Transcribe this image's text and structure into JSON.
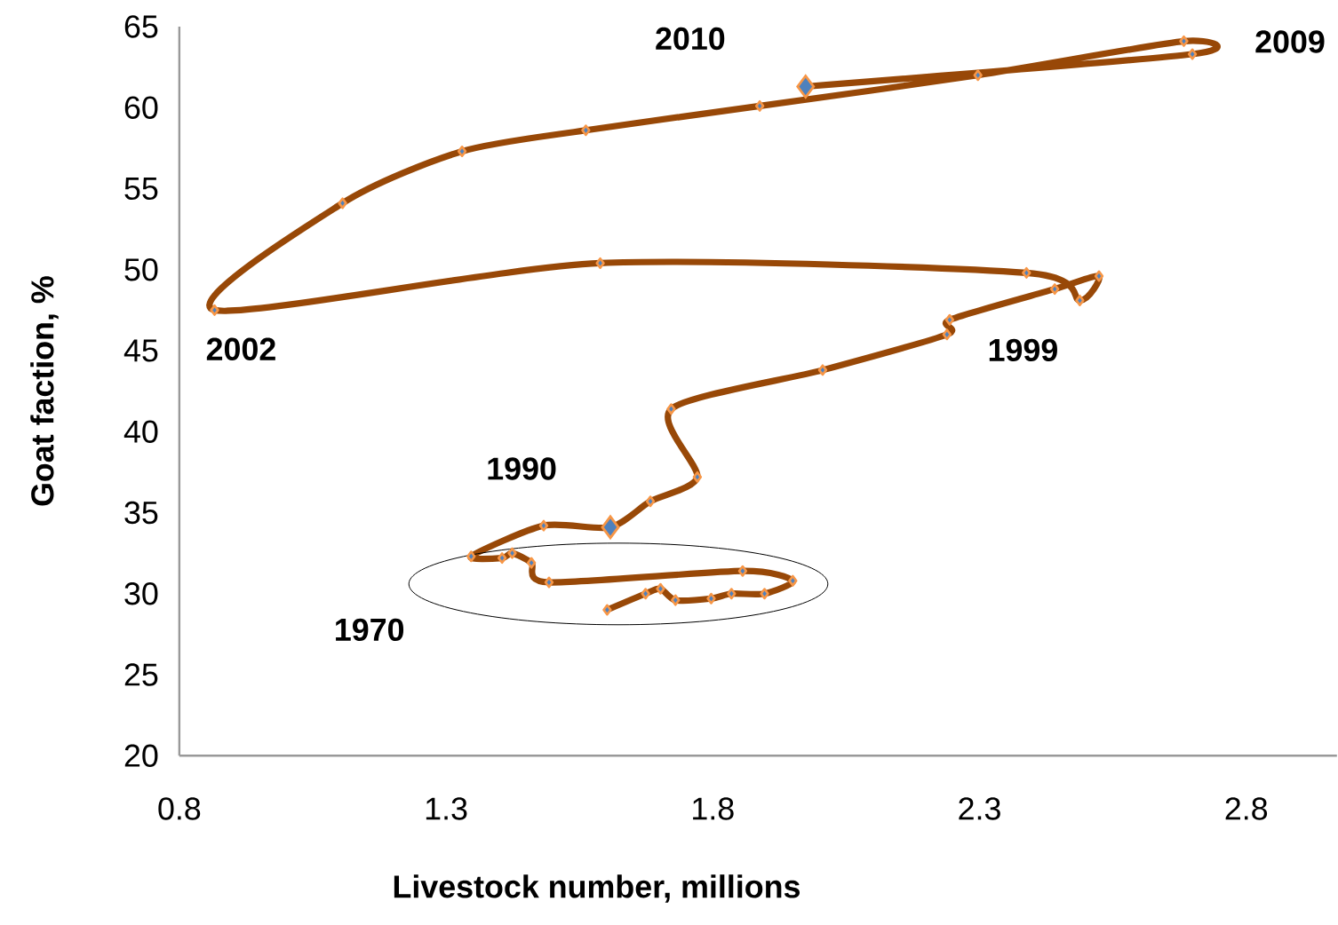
{
  "chart_data": {
    "type": "line",
    "xlabel": "Livestock number, millions",
    "ylabel": "Goat faction, %",
    "xlim": [
      0.8,
      2.97
    ],
    "xticks": [
      0.8,
      1.3,
      1.8,
      2.3,
      2.8
    ],
    "ylim": [
      20,
      65
    ],
    "yticks": [
      20,
      25,
      30,
      35,
      40,
      45,
      50,
      55,
      60,
      65
    ],
    "grid": false,
    "marker": "diamond",
    "line_style": "solid",
    "series": [
      {
        "color": "#984807",
        "x": [
          1.602,
          1.674,
          1.702,
          1.73,
          1.797,
          1.835,
          1.897,
          1.95,
          1.856,
          1.493,
          1.46,
          1.424,
          1.405,
          1.347,
          1.483,
          1.608,
          1.683,
          1.771,
          1.722,
          2.006,
          2.239,
          2.244,
          2.441,
          2.524,
          2.488,
          2.388,
          1.589,
          0.866,
          1.106,
          1.33,
          1.562,
          1.888,
          2.297,
          2.683,
          2.699,
          1.974
        ],
        "values": [
          29.0,
          30.0,
          30.3,
          29.6,
          29.7,
          30.0,
          30.0,
          30.8,
          31.4,
          30.7,
          31.9,
          32.5,
          32.2,
          32.3,
          34.2,
          34.1,
          35.7,
          37.2,
          41.4,
          43.8,
          46.0,
          46.9,
          48.8,
          49.6,
          48.1,
          49.8,
          50.4,
          47.5,
          54.1,
          57.3,
          58.6,
          60.1,
          62.0,
          64.1,
          63.3,
          61.3
        ]
      },
      {
        "type": "scatter",
        "color": "#4f81bd",
        "x": [
          1.608,
          1.974
        ],
        "values": [
          34.1,
          61.3
        ]
      }
    ],
    "annotations": [
      "1970",
      {
        "text": "1990",
        "x": 1.608,
        "y": 34.1
      },
      {
        "text": "1999",
        "x": 2.488,
        "y": 48.1
      },
      {
        "text": "2002",
        "x": 0.866,
        "y": 47.5
      },
      {
        "text": "2009",
        "x": 2.699,
        "y": 63.3
      },
      {
        "text": "2010",
        "x": 1.974,
        "y": 61.3
      }
    ]
  }
}
